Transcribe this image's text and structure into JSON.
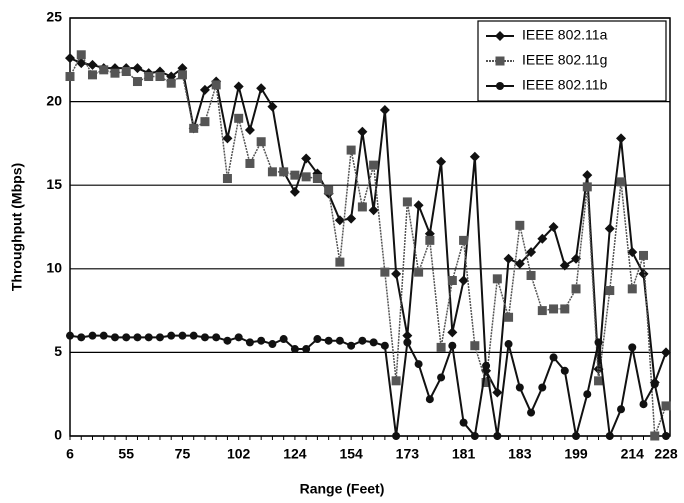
{
  "chart_data": {
    "type": "line",
    "x_label": "Range (Feet)",
    "y_label": "Throughput (Mbps)",
    "categories": [
      "6",
      null,
      null,
      null,
      null,
      "55",
      null,
      null,
      null,
      null,
      "75",
      null,
      null,
      null,
      null,
      "102",
      null,
      null,
      null,
      null,
      "124",
      null,
      null,
      null,
      null,
      "154",
      null,
      null,
      null,
      null,
      "173",
      null,
      null,
      null,
      null,
      "181",
      null,
      null,
      null,
      null,
      "183",
      null,
      null,
      null,
      null,
      "199",
      null,
      null,
      null,
      null,
      "214",
      null,
      null,
      "228"
    ],
    "series": [
      {
        "name": "IEEE 802.11a",
        "color": "#111111",
        "marker": "diamond",
        "values": [
          22.6,
          22.3,
          22.2,
          22.0,
          22.0,
          22.0,
          22.0,
          21.7,
          21.8,
          21.5,
          22.0,
          18.4,
          20.7,
          21.2,
          17.8,
          20.9,
          18.3,
          20.8,
          19.7,
          15.8,
          14.6,
          16.6,
          15.7,
          14.5,
          12.9,
          13.0,
          18.2,
          13.5,
          19.5,
          9.7,
          6.0,
          13.8,
          12.1,
          16.4,
          6.2,
          9.3,
          16.7,
          3.9,
          2.6,
          10.6,
          10.3,
          11.0,
          11.8,
          12.5,
          10.2,
          10.6,
          15.6,
          4.0,
          12.4,
          17.8,
          11.0,
          9.7,
          3.2,
          5.0
        ]
      },
      {
        "name": "IEEE 802.11g",
        "color": "#555555",
        "marker": "square",
        "values": [
          21.5,
          22.8,
          21.6,
          21.9,
          21.7,
          21.8,
          21.2,
          21.5,
          21.5,
          21.1,
          21.6,
          18.4,
          18.8,
          21.0,
          15.4,
          19.0,
          16.3,
          17.6,
          15.8,
          15.8,
          15.6,
          15.5,
          15.4,
          14.7,
          10.4,
          17.1,
          13.7,
          16.2,
          9.8,
          3.3,
          14.0,
          9.8,
          11.7,
          5.3,
          9.3,
          11.7,
          5.4,
          3.2,
          9.4,
          7.1,
          12.6,
          9.6,
          7.5,
          7.6,
          7.6,
          8.8,
          14.9,
          3.3,
          8.7,
          15.2,
          8.8,
          10.8,
          0,
          1.8
        ]
      },
      {
        "name": "IEEE 802.11b",
        "color": "#111111",
        "marker": "circle",
        "values": [
          6.0,
          5.9,
          6.0,
          6.0,
          5.9,
          5.9,
          5.9,
          5.9,
          5.9,
          6.0,
          6.0,
          6.0,
          5.9,
          5.9,
          5.7,
          5.9,
          5.6,
          5.7,
          5.5,
          5.8,
          5.2,
          5.2,
          5.8,
          5.7,
          5.7,
          5.4,
          5.7,
          5.6,
          5.4,
          0,
          5.6,
          4.3,
          2.2,
          3.5,
          5.4,
          0.8,
          0,
          4.2,
          0,
          5.5,
          2.9,
          1.4,
          2.9,
          4.7,
          3.9,
          0,
          2.5,
          5.6,
          0,
          1.6,
          5.3,
          1.9,
          3.1,
          0
        ]
      }
    ],
    "ylim": [
      0,
      25
    ],
    "yticks": [
      0,
      5,
      10,
      15,
      20,
      25
    ],
    "grid": true,
    "legend": "upper right"
  }
}
